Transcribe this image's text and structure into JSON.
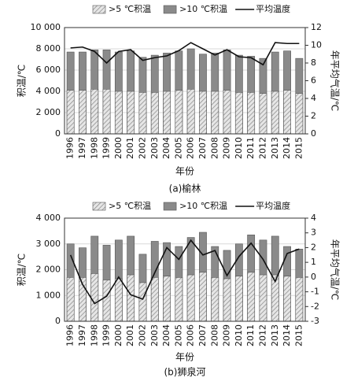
{
  "chart_data": [
    {
      "type": "bar",
      "caption": "(a)榆林",
      "xlabel": "年份",
      "ylabel": "积温/℃",
      "y2label": "年平均气温/℃",
      "grid": true,
      "categories": [
        "1996",
        "1997",
        "1998",
        "1999",
        "2000",
        "2001",
        "2002",
        "2003",
        "2004",
        "2005",
        "2006",
        "2007",
        "2008",
        "2009",
        "2010",
        "2011",
        "2012",
        "2013",
        "2014",
        "2015"
      ],
      "series": [
        {
          "name": ">5 ℃积温",
          "type": "bar",
          "color": "#c8c8c8",
          "values": [
            4100,
            4100,
            4200,
            4200,
            4000,
            4000,
            3900,
            3900,
            4000,
            4100,
            4200,
            4000,
            4000,
            4100,
            3900,
            3900,
            3800,
            4000,
            4100,
            3800
          ]
        },
        {
          "name": ">10 ℃积温",
          "type": "bar",
          "color": "#8a8a8a",
          "values": [
            7700,
            7700,
            7900,
            7900,
            7700,
            7800,
            7200,
            7400,
            7600,
            7800,
            8000,
            7500,
            7600,
            7900,
            7400,
            7300,
            7100,
            7700,
            7800,
            7100
          ]
        },
        {
          "name": "平均温度",
          "type": "line",
          "axis": "y2",
          "color": "#111111",
          "values": [
            9.7,
            9.8,
            9.3,
            8.0,
            9.3,
            9.5,
            8.3,
            8.6,
            8.8,
            9.4,
            10.3,
            9.6,
            8.9,
            9.5,
            8.7,
            8.6,
            7.8,
            10.3,
            10.2,
            10.2
          ]
        }
      ],
      "ylim": [
        0,
        10000
      ],
      "yticks": [
        0,
        {
          "value": 2000,
          "label": "2 000"
        },
        {
          "value": 4000,
          "label": "4 000"
        },
        {
          "value": 6000,
          "label": "6 000"
        },
        {
          "value": 8000,
          "label": "8 000"
        },
        {
          "value": 10000,
          "label": "10 000"
        }
      ],
      "y2lim": [
        0,
        12
      ],
      "y2ticks": [
        0,
        2,
        4,
        6,
        8,
        10,
        12
      ]
    },
    {
      "type": "bar",
      "caption": "(b)狮泉河",
      "xlabel": "年份",
      "ylabel": "积温/℃",
      "y2label": "年平均气温/℃",
      "grid": true,
      "categories": [
        "1996",
        "1997",
        "1998",
        "1999",
        "2000",
        "2001",
        "2002",
        "2003",
        "2004",
        "2005",
        "2006",
        "2007",
        "2008",
        "2009",
        "2010",
        "2011",
        "2012",
        "2013",
        "2014",
        "2015"
      ],
      "series": [
        {
          "name": ">5 ℃积温",
          "type": "bar",
          "color": "#c8c8c8",
          "values": [
            1700,
            1700,
            1850,
            1600,
            1650,
            1800,
            1500,
            1700,
            1750,
            1700,
            1800,
            1900,
            1700,
            1650,
            1750,
            1900,
            1800,
            1800,
            1750,
            1700
          ]
        },
        {
          "name": ">10 ℃积温",
          "type": "bar",
          "color": "#8a8a8a",
          "values": [
            3000,
            2850,
            3300,
            2950,
            3150,
            3300,
            2600,
            3100,
            3050,
            2900,
            3250,
            3450,
            2900,
            2750,
            3000,
            3350,
            3150,
            3300,
            2900,
            2800
          ]
        },
        {
          "name": "平均温度",
          "type": "line",
          "axis": "y2",
          "color": "#111111",
          "values": [
            1.5,
            -0.5,
            -1.8,
            -1.3,
            0,
            -1.2,
            -1.5,
            0.3,
            2.0,
            1.2,
            2.5,
            1.5,
            1.8,
            0.1,
            1.4,
            2.3,
            1.2,
            -0.3,
            1.6,
            1.9
          ]
        }
      ],
      "ylim": [
        0,
        4000
      ],
      "yticks": [
        0,
        {
          "value": 1000,
          "label": "1 000"
        },
        {
          "value": 2000,
          "label": "2 000"
        },
        {
          "value": 3000,
          "label": "3 000"
        },
        {
          "value": 4000,
          "label": "4 000"
        }
      ],
      "y2lim": [
        -3,
        4
      ],
      "y2ticks": [
        -3,
        -2,
        -1,
        0,
        1,
        2,
        3,
        4
      ]
    }
  ]
}
